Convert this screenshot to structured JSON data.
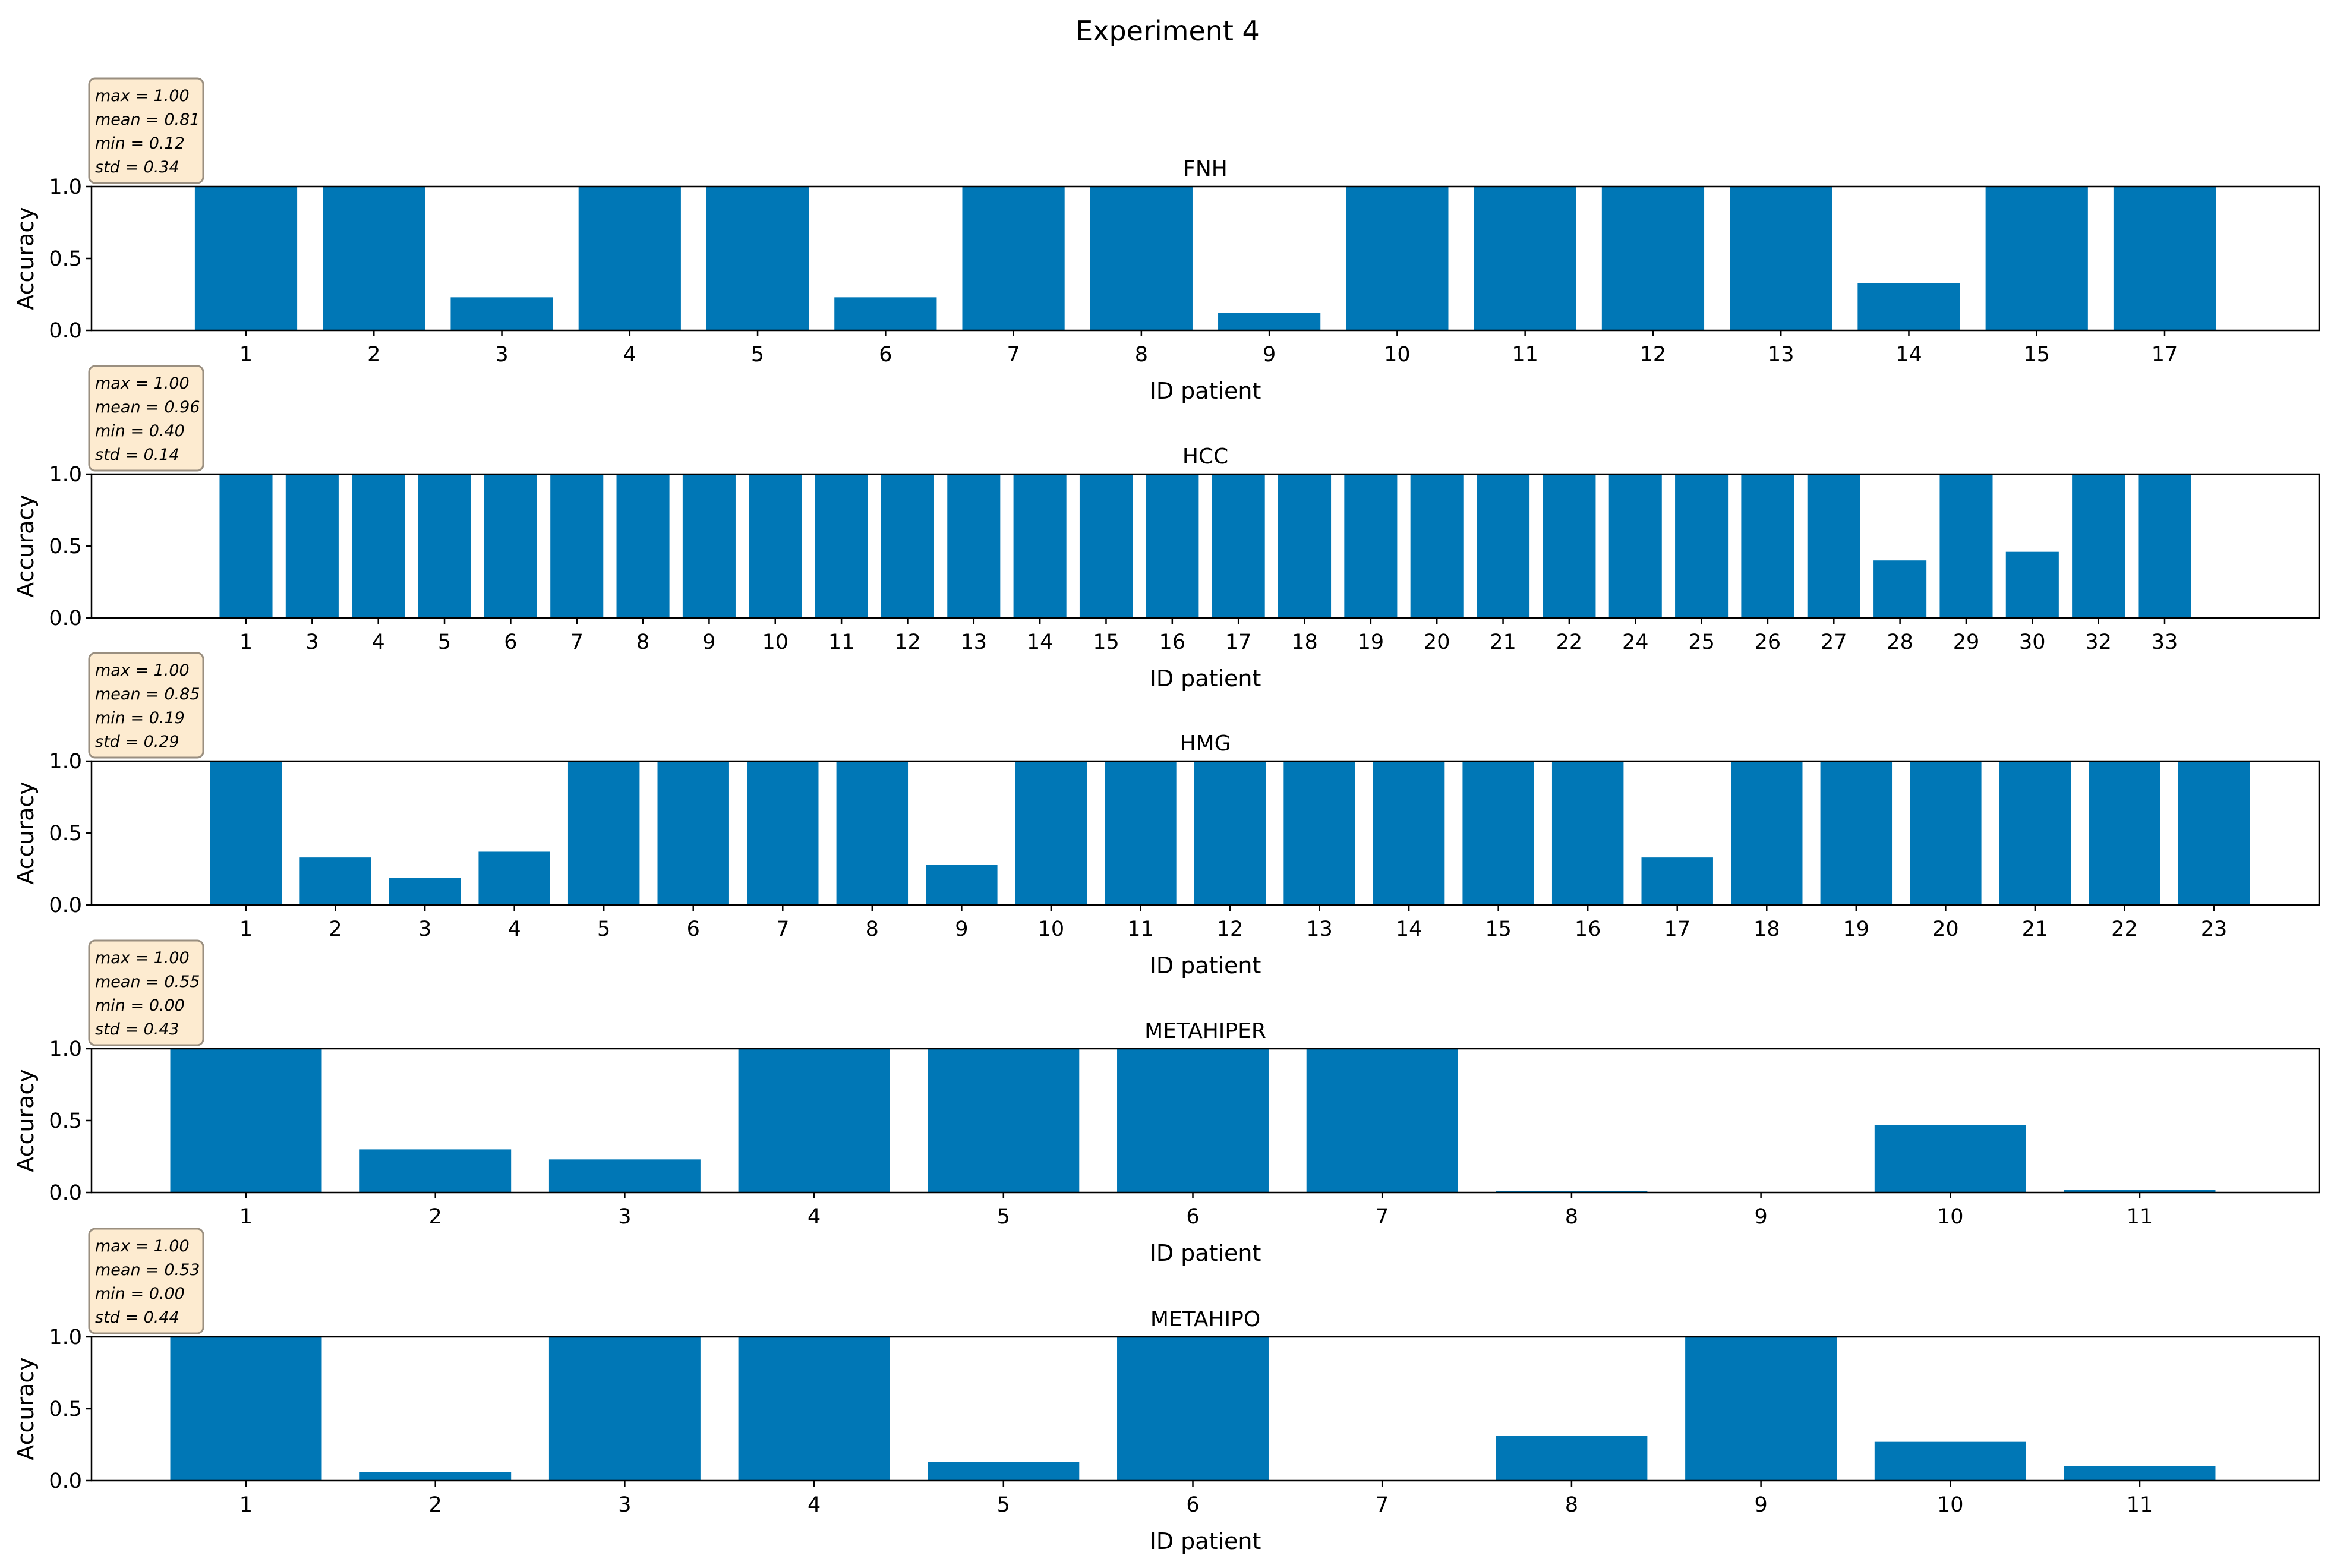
{
  "suptitle": "Experiment 4",
  "colors": {
    "bar": "#0077b6",
    "stats_box_fill": "#fdebd0",
    "stats_box_stroke": "#9a8f80",
    "axis": "#000000"
  },
  "chart_data": [
    {
      "type": "bar",
      "title": "FNH",
      "xlabel": "ID patient",
      "ylabel": "Accuracy",
      "ylim": [
        0,
        1
      ],
      "yticks": [
        "0.0",
        "0.5",
        "1.0"
      ],
      "categories": [
        "1",
        "2",
        "3",
        "4",
        "5",
        "6",
        "7",
        "8",
        "9",
        "10",
        "11",
        "12",
        "13",
        "14",
        "15",
        "17"
      ],
      "values": [
        1.0,
        1.0,
        0.23,
        1.0,
        1.0,
        0.23,
        1.0,
        1.0,
        0.12,
        1.0,
        1.0,
        1.0,
        1.0,
        0.33,
        1.0,
        1.0
      ],
      "stats": [
        "max = 1.00",
        "mean = 0.81",
        "min = 0.12",
        "std = 0.34"
      ]
    },
    {
      "type": "bar",
      "title": "HCC",
      "xlabel": "ID patient",
      "ylabel": "Accuracy",
      "ylim": [
        0,
        1
      ],
      "yticks": [
        "0.0",
        "0.5",
        "1.0"
      ],
      "categories": [
        "1",
        "3",
        "4",
        "5",
        "6",
        "7",
        "8",
        "9",
        "10",
        "11",
        "12",
        "13",
        "14",
        "15",
        "16",
        "17",
        "18",
        "19",
        "20",
        "21",
        "22",
        "24",
        "25",
        "26",
        "27",
        "28",
        "29",
        "30",
        "32",
        "33"
      ],
      "values": [
        1.0,
        1.0,
        1.0,
        1.0,
        1.0,
        1.0,
        1.0,
        1.0,
        1.0,
        1.0,
        1.0,
        1.0,
        1.0,
        1.0,
        1.0,
        1.0,
        1.0,
        1.0,
        1.0,
        1.0,
        1.0,
        1.0,
        1.0,
        1.0,
        1.0,
        0.4,
        1.0,
        0.46,
        1.0,
        1.0
      ],
      "stats": [
        "max = 1.00",
        "mean = 0.96",
        "min = 0.40",
        "std = 0.14"
      ]
    },
    {
      "type": "bar",
      "title": "HMG",
      "xlabel": "ID patient",
      "ylabel": "Accuracy",
      "ylim": [
        0,
        1
      ],
      "yticks": [
        "0.0",
        "0.5",
        "1.0"
      ],
      "categories": [
        "1",
        "2",
        "3",
        "4",
        "5",
        "6",
        "7",
        "8",
        "9",
        "10",
        "11",
        "12",
        "13",
        "14",
        "15",
        "16",
        "17",
        "18",
        "19",
        "20",
        "21",
        "22",
        "23"
      ],
      "values": [
        1.0,
        0.33,
        0.19,
        0.37,
        1.0,
        1.0,
        1.0,
        1.0,
        0.28,
        1.0,
        1.0,
        1.0,
        1.0,
        1.0,
        1.0,
        1.0,
        0.33,
        1.0,
        1.0,
        1.0,
        1.0,
        1.0,
        1.0
      ],
      "stats": [
        "max = 1.00",
        "mean = 0.85",
        "min = 0.19",
        "std = 0.29"
      ]
    },
    {
      "type": "bar",
      "title": "METAHIPER",
      "xlabel": "ID patient",
      "ylabel": "Accuracy",
      "ylim": [
        0,
        1
      ],
      "yticks": [
        "0.0",
        "0.5",
        "1.0"
      ],
      "categories": [
        "1",
        "2",
        "3",
        "4",
        "5",
        "6",
        "7",
        "8",
        "9",
        "10",
        "11"
      ],
      "values": [
        1.0,
        0.3,
        0.23,
        1.0,
        1.0,
        1.0,
        1.0,
        0.01,
        0.0,
        0.47,
        0.02
      ],
      "stats": [
        "max = 1.00",
        "mean = 0.55",
        "min = 0.00",
        "std = 0.43"
      ]
    },
    {
      "type": "bar",
      "title": "METAHIPO",
      "xlabel": "ID patient",
      "ylabel": "Accuracy",
      "ylim": [
        0,
        1
      ],
      "yticks": [
        "0.0",
        "0.5",
        "1.0"
      ],
      "categories": [
        "1",
        "2",
        "3",
        "4",
        "5",
        "6",
        "7",
        "8",
        "9",
        "10",
        "11"
      ],
      "values": [
        1.0,
        0.06,
        1.0,
        1.0,
        0.13,
        1.0,
        0.0,
        0.31,
        1.0,
        0.27,
        0.1
      ],
      "stats": [
        "max = 1.00",
        "mean = 0.53",
        "min = 0.00",
        "std = 0.44"
      ]
    }
  ]
}
